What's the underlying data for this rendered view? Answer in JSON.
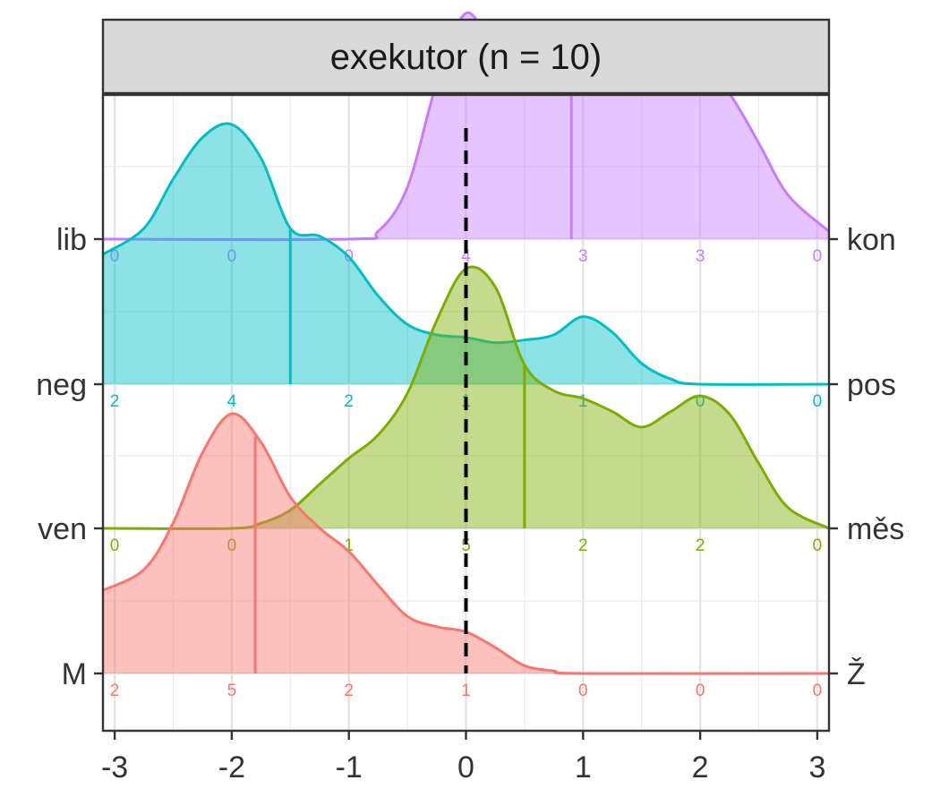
{
  "chart_data": {
    "type": "area",
    "subtype": "ridgeline-density",
    "title": "exekutor (n = 10)",
    "xlabel": "",
    "ylabel": "",
    "xlim": [
      -3.1,
      3.1
    ],
    "x_ticks": [
      "-3",
      "-2",
      "-1",
      "0",
      "1",
      "2",
      "3"
    ],
    "reference_line_x": 0,
    "grid": true,
    "count_positions": [
      -3,
      -2,
      -1,
      0,
      1,
      2,
      3
    ],
    "series": [
      {
        "left_label": "M",
        "right_label": "Ž",
        "color": "#F8766D",
        "median": -1.8,
        "counts": [
          "2",
          "5",
          "2",
          "1",
          "0",
          "0",
          "0"
        ],
        "density": [
          [
            -3.1,
            0.32
          ],
          [
            -2.75,
            0.4
          ],
          [
            -2.5,
            0.58
          ],
          [
            -2.25,
            0.85
          ],
          [
            -2.0,
            1.0
          ],
          [
            -1.75,
            0.89
          ],
          [
            -1.5,
            0.68
          ],
          [
            -1.25,
            0.56
          ],
          [
            -1.0,
            0.47
          ],
          [
            -0.75,
            0.34
          ],
          [
            -0.5,
            0.22
          ],
          [
            -0.25,
            0.18
          ],
          [
            0.0,
            0.16
          ],
          [
            0.25,
            0.1
          ],
          [
            0.5,
            0.03
          ],
          [
            0.75,
            0.01
          ],
          [
            1.0,
            0.0
          ],
          [
            3.1,
            0.0
          ]
        ]
      },
      {
        "left_label": "ven",
        "right_label": "měs",
        "color": "#7CAE00",
        "median": 0.5,
        "counts": [
          "0",
          "0",
          "1",
          "5",
          "2",
          "2",
          "0"
        ],
        "density": [
          [
            -3.1,
            0.0
          ],
          [
            -2.0,
            0.0
          ],
          [
            -1.75,
            0.02
          ],
          [
            -1.5,
            0.07
          ],
          [
            -1.25,
            0.17
          ],
          [
            -1.0,
            0.27
          ],
          [
            -0.75,
            0.36
          ],
          [
            -0.5,
            0.52
          ],
          [
            -0.25,
            0.8
          ],
          [
            0.0,
            1.0
          ],
          [
            0.25,
            0.93
          ],
          [
            0.5,
            0.63
          ],
          [
            0.75,
            0.53
          ],
          [
            1.0,
            0.5
          ],
          [
            1.25,
            0.45
          ],
          [
            1.5,
            0.39
          ],
          [
            1.75,
            0.45
          ],
          [
            2.0,
            0.51
          ],
          [
            2.25,
            0.44
          ],
          [
            2.5,
            0.25
          ],
          [
            2.75,
            0.08
          ],
          [
            3.1,
            0.0
          ]
        ]
      },
      {
        "left_label": "neg",
        "right_label": "pos",
        "color": "#00BFC4",
        "median": -1.5,
        "counts": [
          "2",
          "4",
          "2",
          "1",
          "1",
          "0",
          "0"
        ],
        "density": [
          [
            -3.1,
            0.5
          ],
          [
            -2.75,
            0.6
          ],
          [
            -2.5,
            0.79
          ],
          [
            -2.25,
            0.95
          ],
          [
            -2.0,
            1.0
          ],
          [
            -1.75,
            0.87
          ],
          [
            -1.5,
            0.6
          ],
          [
            -1.25,
            0.57
          ],
          [
            -1.0,
            0.49
          ],
          [
            -0.75,
            0.34
          ],
          [
            -0.5,
            0.23
          ],
          [
            -0.25,
            0.19
          ],
          [
            0.0,
            0.18
          ],
          [
            0.25,
            0.16
          ],
          [
            0.5,
            0.17
          ],
          [
            0.75,
            0.19
          ],
          [
            1.0,
            0.26
          ],
          [
            1.25,
            0.2
          ],
          [
            1.5,
            0.08
          ],
          [
            1.75,
            0.02
          ],
          [
            2.0,
            0.0
          ],
          [
            3.1,
            0.0
          ]
        ]
      },
      {
        "left_label": "lib",
        "right_label": "kon",
        "color": "#C77CFF",
        "median": 0.9,
        "counts": [
          "0",
          "0",
          "0",
          "4",
          "3",
          "3",
          "0"
        ],
        "density": [
          [
            -3.1,
            0.0
          ],
          [
            -1.0,
            0.0
          ],
          [
            -0.75,
            0.03
          ],
          [
            -0.5,
            0.2
          ],
          [
            -0.25,
            0.6
          ],
          [
            0.0,
            0.87
          ],
          [
            0.25,
            0.72
          ],
          [
            0.5,
            0.64
          ],
          [
            0.75,
            0.64
          ],
          [
            1.0,
            0.69
          ],
          [
            1.25,
            0.63
          ],
          [
            1.5,
            0.57
          ],
          [
            1.75,
            0.6
          ],
          [
            2.0,
            0.67
          ],
          [
            2.25,
            0.56
          ],
          [
            2.5,
            0.37
          ],
          [
            2.75,
            0.17
          ],
          [
            3.1,
            0.03
          ]
        ]
      }
    ]
  }
}
